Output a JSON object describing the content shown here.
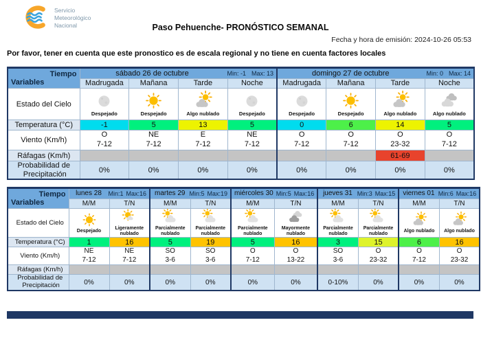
{
  "header": {
    "logo_line1": "Servicio",
    "logo_line2": "Meteorológico",
    "logo_line3": "Nacional",
    "title": "Paso Pehuenche- PRONÓSTICO SEMANAL",
    "emission": "Fecha y hora de emisión: 2024-10-26 05:53",
    "note": "Por favor, tener en cuenta que este pronostico es de escala regional y no tiene en cuenta factores locales"
  },
  "labels": {
    "tiempo": "Tiempo",
    "variables": "Variables",
    "estado": "Estado del Cielo",
    "temperatura": "Temperatura (°C)",
    "viento": "Viento (Km/h)",
    "rafagas": "Ráfagas (Km/h)",
    "precipitacion_l1": "Probabilidad de",
    "precipitacion_l2": "Precipitación"
  },
  "colors": {
    "header_blue": "#6FA8DC",
    "subheader_blue": "#CFE2F3",
    "label_blue": "#DCE6F1",
    "gust_gray": "#C4C4C4",
    "gust_alert_red": "#E8432C",
    "border_navy": "#1F3864",
    "logo_orange": "#F7A62A",
    "logo_wave_blue": "#39A3DC"
  },
  "table1": {
    "days": [
      {
        "name": "sábado 26 de octubre",
        "min": "Min: -1",
        "max": "Max: 13",
        "periods": [
          {
            "label": "Madrugada",
            "icon": "moon",
            "sky": "Despejado",
            "temp": "-1",
            "temp_color": "#00DCEE",
            "wind_dir": "O",
            "wind_spd": "7-12",
            "gust": "",
            "precip": "0%"
          },
          {
            "label": "Mañana",
            "icon": "sun",
            "sky": "Despejado",
            "temp": "5",
            "temp_color": "#00F07E",
            "wind_dir": "NE",
            "wind_spd": "7-12",
            "gust": "",
            "precip": "0%"
          },
          {
            "label": "Tarde",
            "icon": "sun-cloud",
            "sky": "Algo nublado",
            "temp": "13",
            "temp_color": "#EDF300",
            "wind_dir": "E",
            "wind_spd": "7-12",
            "gust": "",
            "precip": "0%"
          },
          {
            "label": "Noche",
            "icon": "moon",
            "sky": "Despejado",
            "temp": "5",
            "temp_color": "#00F07E",
            "wind_dir": "NE",
            "wind_spd": "7-12",
            "gust": "",
            "precip": "0%"
          }
        ]
      },
      {
        "name": "domingo 27 de octubre",
        "min": "Min: 0",
        "max": "Max: 14",
        "periods": [
          {
            "label": "Madrugada",
            "icon": "moon",
            "sky": "Despejado",
            "temp": "0",
            "temp_color": "#00DCEE",
            "wind_dir": "O",
            "wind_spd": "7-12",
            "gust": "",
            "precip": "0%"
          },
          {
            "label": "Mañana",
            "icon": "sun",
            "sky": "Despejado",
            "temp": "6",
            "temp_color": "#4DF049",
            "wind_dir": "O",
            "wind_spd": "7-12",
            "gust": "",
            "precip": "0%"
          },
          {
            "label": "Tarde",
            "icon": "sun-cloud",
            "sky": "Algo nublado",
            "temp": "14",
            "temp_color": "#EDF300",
            "wind_dir": "O",
            "wind_spd": "23-32",
            "gust": "61-69",
            "precip": "0%"
          },
          {
            "label": "Noche",
            "icon": "clouds",
            "sky": "Algo nublado",
            "temp": "5",
            "temp_color": "#00F07E",
            "wind_dir": "O",
            "wind_spd": "7-12",
            "gust": "",
            "precip": "0%"
          }
        ]
      }
    ]
  },
  "table2": {
    "days": [
      {
        "name": "lunes 28",
        "min": "Min:1",
        "max": "Max:16",
        "periods": [
          {
            "label": "M/M",
            "icon": "sun",
            "sky": "Despejado",
            "temp": "1",
            "temp_color": "#00F07E",
            "wind_dir": "NE",
            "wind_spd": "7-12",
            "gust": "",
            "precip": "0%"
          },
          {
            "label": "T/N",
            "icon": "sun-small-cloud",
            "sky": "Ligeramente nublado",
            "temp": "16",
            "temp_color": "#FFC300",
            "wind_dir": "NE",
            "wind_spd": "7-12",
            "gust": "",
            "precip": "0%"
          }
        ]
      },
      {
        "name": "martes 29",
        "min": "Min:5",
        "max": "Max:19",
        "periods": [
          {
            "label": "M/M",
            "icon": "cloud-sun",
            "sky": "Parcialmente nublado",
            "temp": "5",
            "temp_color": "#00F07E",
            "wind_dir": "SO",
            "wind_spd": "3-6",
            "gust": "",
            "precip": "0%"
          },
          {
            "label": "T/N",
            "icon": "cloud-sun",
            "sky": "Parcialmente nublado",
            "temp": "19",
            "temp_color": "#FFC300",
            "wind_dir": "SO",
            "wind_spd": "3-6",
            "gust": "",
            "precip": "0%"
          }
        ]
      },
      {
        "name": "miércoles 30",
        "min": "Min:5",
        "max": "Max:16",
        "periods": [
          {
            "label": "M/M",
            "icon": "cloud-sun",
            "sky": "Parcialmente nublado",
            "temp": "5",
            "temp_color": "#00F07E",
            "wind_dir": "O",
            "wind_spd": "7-12",
            "gust": "",
            "precip": "0%"
          },
          {
            "label": "T/N",
            "icon": "cloud-dark",
            "sky": "Mayormente nublado",
            "temp": "16",
            "temp_color": "#FFC300",
            "wind_dir": "O",
            "wind_spd": "13-22",
            "gust": "",
            "precip": "0%"
          }
        ]
      },
      {
        "name": "jueves 31",
        "min": "Min:3",
        "max": "Max:15",
        "periods": [
          {
            "label": "M/M",
            "icon": "cloud-sun",
            "sky": "Parcialmente nublado",
            "temp": "3",
            "temp_color": "#00F07E",
            "wind_dir": "SO",
            "wind_spd": "3-6",
            "gust": "",
            "precip": "0-10%"
          },
          {
            "label": "T/N",
            "icon": "cloud-sun",
            "sky": "Parcialmente nublado",
            "temp": "15",
            "temp_color": "#DEF32B",
            "wind_dir": "O",
            "wind_spd": "23-32",
            "gust": "",
            "precip": "0%"
          }
        ]
      },
      {
        "name": "viernes 01",
        "min": "Min:6",
        "max": "Max:16",
        "periods": [
          {
            "label": "M/M",
            "icon": "sun-cloud",
            "sky": "Algo nublado",
            "temp": "6",
            "temp_color": "#4DF049",
            "wind_dir": "O",
            "wind_spd": "7-12",
            "gust": "",
            "precip": "0%"
          },
          {
            "label": "T/N",
            "icon": "sun-cloud",
            "sky": "Algo nublado",
            "temp": "16",
            "temp_color": "#FFC300",
            "wind_dir": "O",
            "wind_spd": "23-32",
            "gust": "",
            "precip": "0%"
          }
        ]
      }
    ]
  }
}
